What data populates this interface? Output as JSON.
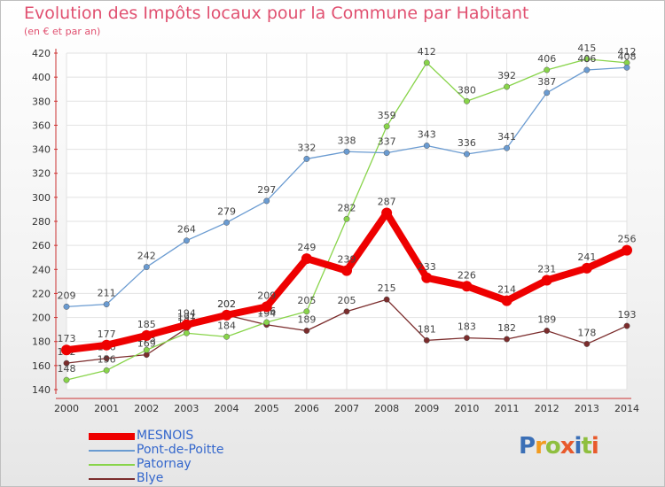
{
  "title": "Evolution des Impôts locaux pour la Commune par Habitant",
  "subtitle": "(en € et par an)",
  "logo": {
    "letters": [
      "P",
      "r",
      "o",
      "x",
      "i",
      "t",
      "i"
    ],
    "colors": [
      "#3b6fb6",
      "#f29b1f",
      "#8fbf3f",
      "#e85a2c",
      "#3b6fb6",
      "#8fbf3f",
      "#e85a2c"
    ]
  },
  "chart_data": {
    "type": "line",
    "x": [
      "2000",
      "2001",
      "2002",
      "2003",
      "2004",
      "2005",
      "2006",
      "2007",
      "2008",
      "2009",
      "2010",
      "2011",
      "2012",
      "2013",
      "2014"
    ],
    "ylim": [
      140,
      420
    ],
    "yticks": [
      "140",
      "160",
      "180",
      "200",
      "220",
      "240",
      "260",
      "280",
      "300",
      "320",
      "340",
      "360",
      "380",
      "400",
      "420"
    ],
    "grid": true,
    "legend": "bottom-left",
    "series": [
      {
        "name": "Blye",
        "color": "#7b2c2c",
        "values": [
          162,
          166,
          169,
          191,
          202,
          194,
          189,
          205,
          215,
          181,
          183,
          182,
          189,
          178,
          193
        ]
      },
      {
        "name": "Patornay",
        "color": "#88d44a",
        "values": [
          148,
          156,
          173,
          187,
          184,
          196,
          205,
          282,
          359,
          412,
          380,
          392,
          406,
          415,
          412
        ]
      },
      {
        "name": "Pont-de-Poitte",
        "color": "#6a9bd1",
        "values": [
          209,
          211,
          242,
          264,
          279,
          297,
          332,
          338,
          337,
          343,
          336,
          341,
          387,
          406,
          408
        ]
      },
      {
        "name": "MESNOIS",
        "color": "#ee0000",
        "values": [
          173,
          177,
          185,
          194,
          202,
          209,
          249,
          239,
          287,
          233,
          226,
          214,
          231,
          241,
          256
        ]
      }
    ]
  }
}
